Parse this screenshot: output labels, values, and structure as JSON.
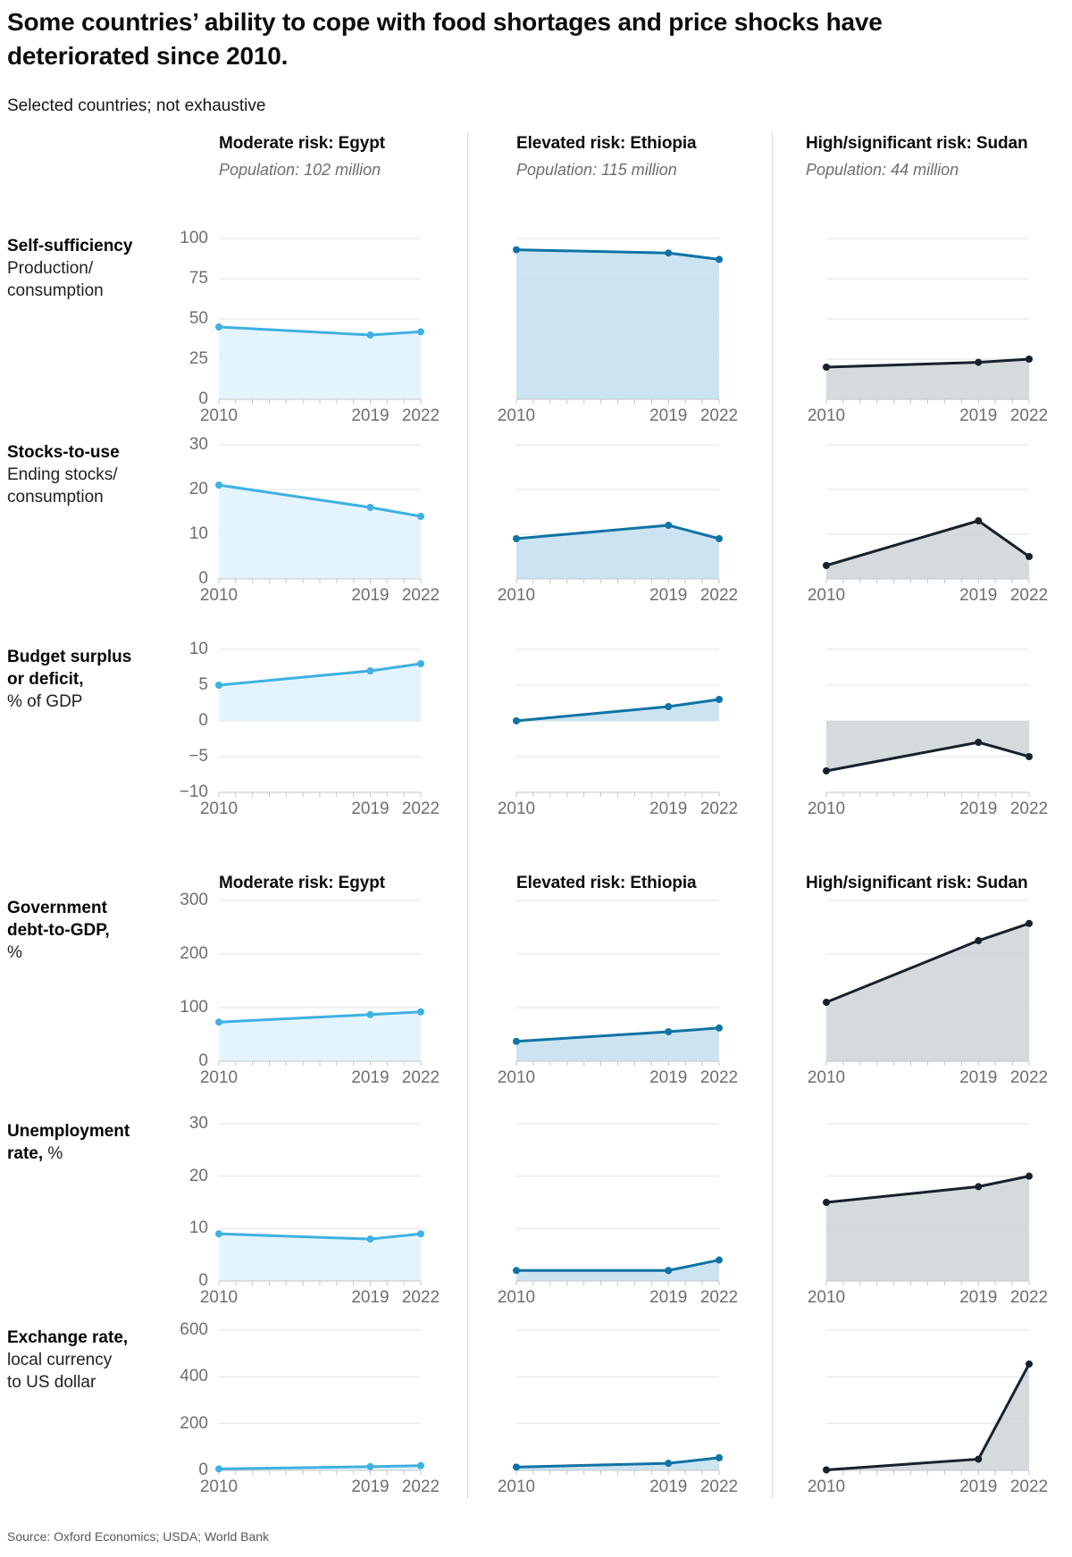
{
  "header": {
    "title": "Some countries’ ability to cope with food shortages and price shocks have deteriorated since 2010.",
    "subtitle": "Selected countries; not exhaustive"
  },
  "footer": {
    "source": "Source: Oxford Economics; USDA; World Bank"
  },
  "columns": [
    {
      "id": "egypt",
      "risk_label": "Moderate risk: Egypt",
      "population": "Population: 102 million",
      "line_color": "#3eb1e2",
      "fill_color": "#dff2fb"
    },
    {
      "id": "ethiopia",
      "risk_label": "Elevated risk: Ethiopia",
      "population": "Population: 115 million",
      "line_color": "#0f73a5",
      "fill_color": "#c3dfee"
    },
    {
      "id": "sudan",
      "risk_label": "High/significant risk: Sudan",
      "population": "Population: 44 million",
      "line_color": "#15222d",
      "fill_color": "#ced4d7"
    }
  ],
  "x_years": [
    2010,
    2019,
    2022
  ],
  "chart_data": [
    {
      "type": "area",
      "id": "self-sufficiency",
      "label_lines": [
        [
          {
            "text": "Self-sufficiency",
            "bold": true
          }
        ],
        [
          {
            "text": "Production/",
            "bold": false
          }
        ],
        [
          {
            "text": "consumption",
            "bold": false
          }
        ]
      ],
      "x_range": [
        2010,
        2022
      ],
      "ylim": [
        0,
        100
      ],
      "yticks": [
        0,
        25,
        50,
        75,
        100
      ],
      "grid": true,
      "series": [
        {
          "name": "Egypt",
          "values": [
            45,
            40,
            42
          ]
        },
        {
          "name": "Ethiopia",
          "values": [
            93,
            91,
            87
          ]
        },
        {
          "name": "Sudan",
          "values": [
            20,
            23,
            25
          ]
        }
      ]
    },
    {
      "type": "area",
      "id": "stocks-to-use",
      "label_lines": [
        [
          {
            "text": "Stocks-to-use",
            "bold": true
          }
        ],
        [
          {
            "text": "Ending stocks/",
            "bold": false
          }
        ],
        [
          {
            "text": "consumption",
            "bold": false
          }
        ]
      ],
      "x_range": [
        2010,
        2022
      ],
      "ylim": [
        0,
        30
      ],
      "yticks": [
        0,
        10,
        20,
        30
      ],
      "grid": true,
      "series": [
        {
          "name": "Egypt",
          "values": [
            21,
            16,
            14
          ]
        },
        {
          "name": "Ethiopia",
          "values": [
            9,
            12,
            9
          ]
        },
        {
          "name": "Sudan",
          "values": [
            3,
            13,
            5
          ]
        }
      ]
    },
    {
      "type": "area",
      "id": "budget-balance",
      "label_lines": [
        [
          {
            "text": "Budget surplus",
            "bold": true
          }
        ],
        [
          {
            "text": "or deficit,",
            "bold": true
          }
        ],
        [
          {
            "text": "% of GDP",
            "bold": false
          }
        ]
      ],
      "x_range": [
        2010,
        2022
      ],
      "ylim": [
        -10,
        10
      ],
      "yticks": [
        -10,
        -5,
        0,
        5,
        10
      ],
      "grid": true,
      "baseline": 0,
      "series": [
        {
          "name": "Egypt",
          "values": [
            5,
            7,
            8
          ]
        },
        {
          "name": "Ethiopia",
          "values": [
            0,
            2,
            3
          ]
        },
        {
          "name": "Sudan",
          "values": [
            -7,
            -3,
            -5
          ]
        }
      ]
    },
    {
      "type": "area",
      "id": "debt-to-gdp",
      "label_lines": [
        [
          {
            "text": "Government",
            "bold": true
          }
        ],
        [
          {
            "text": "debt-to-GDP,",
            "bold": true
          }
        ],
        [
          {
            "text": "%",
            "bold": false
          }
        ]
      ],
      "x_range": [
        2010,
        2022
      ],
      "ylim": [
        0,
        300
      ],
      "yticks": [
        0,
        100,
        200,
        300
      ],
      "grid": true,
      "series": [
        {
          "name": "Egypt",
          "values": [
            73,
            87,
            92
          ]
        },
        {
          "name": "Ethiopia",
          "values": [
            37,
            55,
            62
          ]
        },
        {
          "name": "Sudan",
          "values": [
            110,
            225,
            257
          ]
        }
      ]
    },
    {
      "type": "area",
      "id": "unemployment",
      "label_lines": [
        [
          {
            "text": "Unemployment",
            "bold": true
          }
        ],
        [
          {
            "text": "rate,",
            "bold": true
          },
          {
            "text": " %",
            "bold": false
          }
        ]
      ],
      "x_range": [
        2010,
        2022
      ],
      "ylim": [
        0,
        30
      ],
      "yticks": [
        0,
        10,
        20,
        30
      ],
      "grid": true,
      "series": [
        {
          "name": "Egypt",
          "values": [
            9,
            8,
            9
          ]
        },
        {
          "name": "Ethiopia",
          "values": [
            2,
            2,
            4
          ]
        },
        {
          "name": "Sudan",
          "values": [
            15,
            18,
            20
          ]
        }
      ]
    },
    {
      "type": "area",
      "id": "exchange-rate",
      "label_lines": [
        [
          {
            "text": "Exchange rate,",
            "bold": true
          }
        ],
        [
          {
            "text": "local currency",
            "bold": false
          }
        ],
        [
          {
            "text": "to US dollar",
            "bold": false
          }
        ]
      ],
      "x_range": [
        2010,
        2022
      ],
      "ylim": [
        0,
        600
      ],
      "yticks": [
        0,
        200,
        400,
        600
      ],
      "grid": true,
      "series": [
        {
          "name": "Egypt",
          "values": [
            6,
            16,
            20
          ]
        },
        {
          "name": "Ethiopia",
          "values": [
            14,
            30,
            54
          ]
        },
        {
          "name": "Sudan",
          "values": [
            2,
            48,
            455
          ]
        }
      ]
    }
  ]
}
